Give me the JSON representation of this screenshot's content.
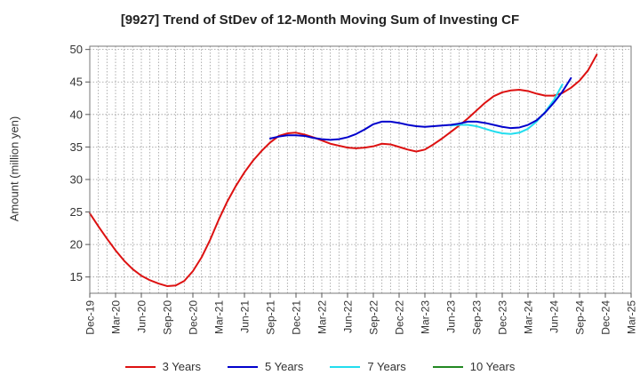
{
  "chart_data": {
    "type": "line",
    "title": "[9927]  Trend of StDev of 12-Month Moving Sum of Investing CF",
    "xlabel": "",
    "ylabel": "Amount (million yen)",
    "ylim": [
      12.5,
      50.5
    ],
    "yticks": [
      15,
      20,
      25,
      30,
      35,
      40,
      45,
      50
    ],
    "grid": true,
    "legend_position": "bottom",
    "x_tick_labels": [
      "Dec-19",
      "Mar-20",
      "Jun-20",
      "Sep-20",
      "Dec-20",
      "Mar-21",
      "Jun-21",
      "Sep-21",
      "Dec-21",
      "Mar-22",
      "Jun-22",
      "Sep-22",
      "Dec-22",
      "Mar-23",
      "Jun-23",
      "Sep-23",
      "Dec-23",
      "Mar-24",
      "Jun-24",
      "Sep-24",
      "Dec-24",
      "Mar-25"
    ],
    "series": [
      {
        "name": "3 Years",
        "color": "#dd1111",
        "start": "Dec-19",
        "values": [
          24.8,
          22.8,
          20.9,
          19.1,
          17.5,
          16.2,
          15.2,
          14.5,
          14.0,
          13.6,
          13.7,
          14.4,
          15.9,
          18.0,
          20.7,
          23.8,
          26.6,
          29.0,
          31.1,
          32.9,
          34.4,
          35.7,
          36.7,
          37.1,
          37.2,
          36.9,
          36.5,
          36.0,
          35.5,
          35.2,
          34.9,
          34.8,
          34.9,
          35.1,
          35.5,
          35.4,
          35.0,
          34.6,
          34.3,
          34.6,
          35.4,
          36.3,
          37.3,
          38.3,
          39.4,
          40.6,
          41.8,
          42.8,
          43.4,
          43.7,
          43.8,
          43.6,
          43.2,
          42.9,
          42.9,
          43.3,
          44.1,
          45.2,
          46.8,
          49.2
        ]
      },
      {
        "name": "5 Years",
        "color": "#0000cc",
        "start": "Sep-21",
        "values": [
          36.3,
          36.6,
          36.8,
          36.8,
          36.7,
          36.4,
          36.2,
          36.1,
          36.2,
          36.5,
          37.0,
          37.7,
          38.5,
          38.9,
          38.9,
          38.7,
          38.4,
          38.2,
          38.1,
          38.2,
          38.3,
          38.4,
          38.6,
          38.9,
          38.9,
          38.7,
          38.4,
          38.1,
          37.9,
          38.0,
          38.4,
          39.1,
          40.3,
          41.8,
          43.5,
          45.6
        ]
      },
      {
        "name": "7 Years",
        "color": "#22ddee",
        "start": "Jun-23",
        "values": [
          38.3,
          38.4,
          38.4,
          38.2,
          37.8,
          37.4,
          37.1,
          37.0,
          37.2,
          37.8,
          38.9,
          40.4,
          42.2,
          44.6
        ]
      },
      {
        "name": "10 Years",
        "color": "#228822",
        "start": "Dec-24",
        "values": []
      }
    ]
  }
}
